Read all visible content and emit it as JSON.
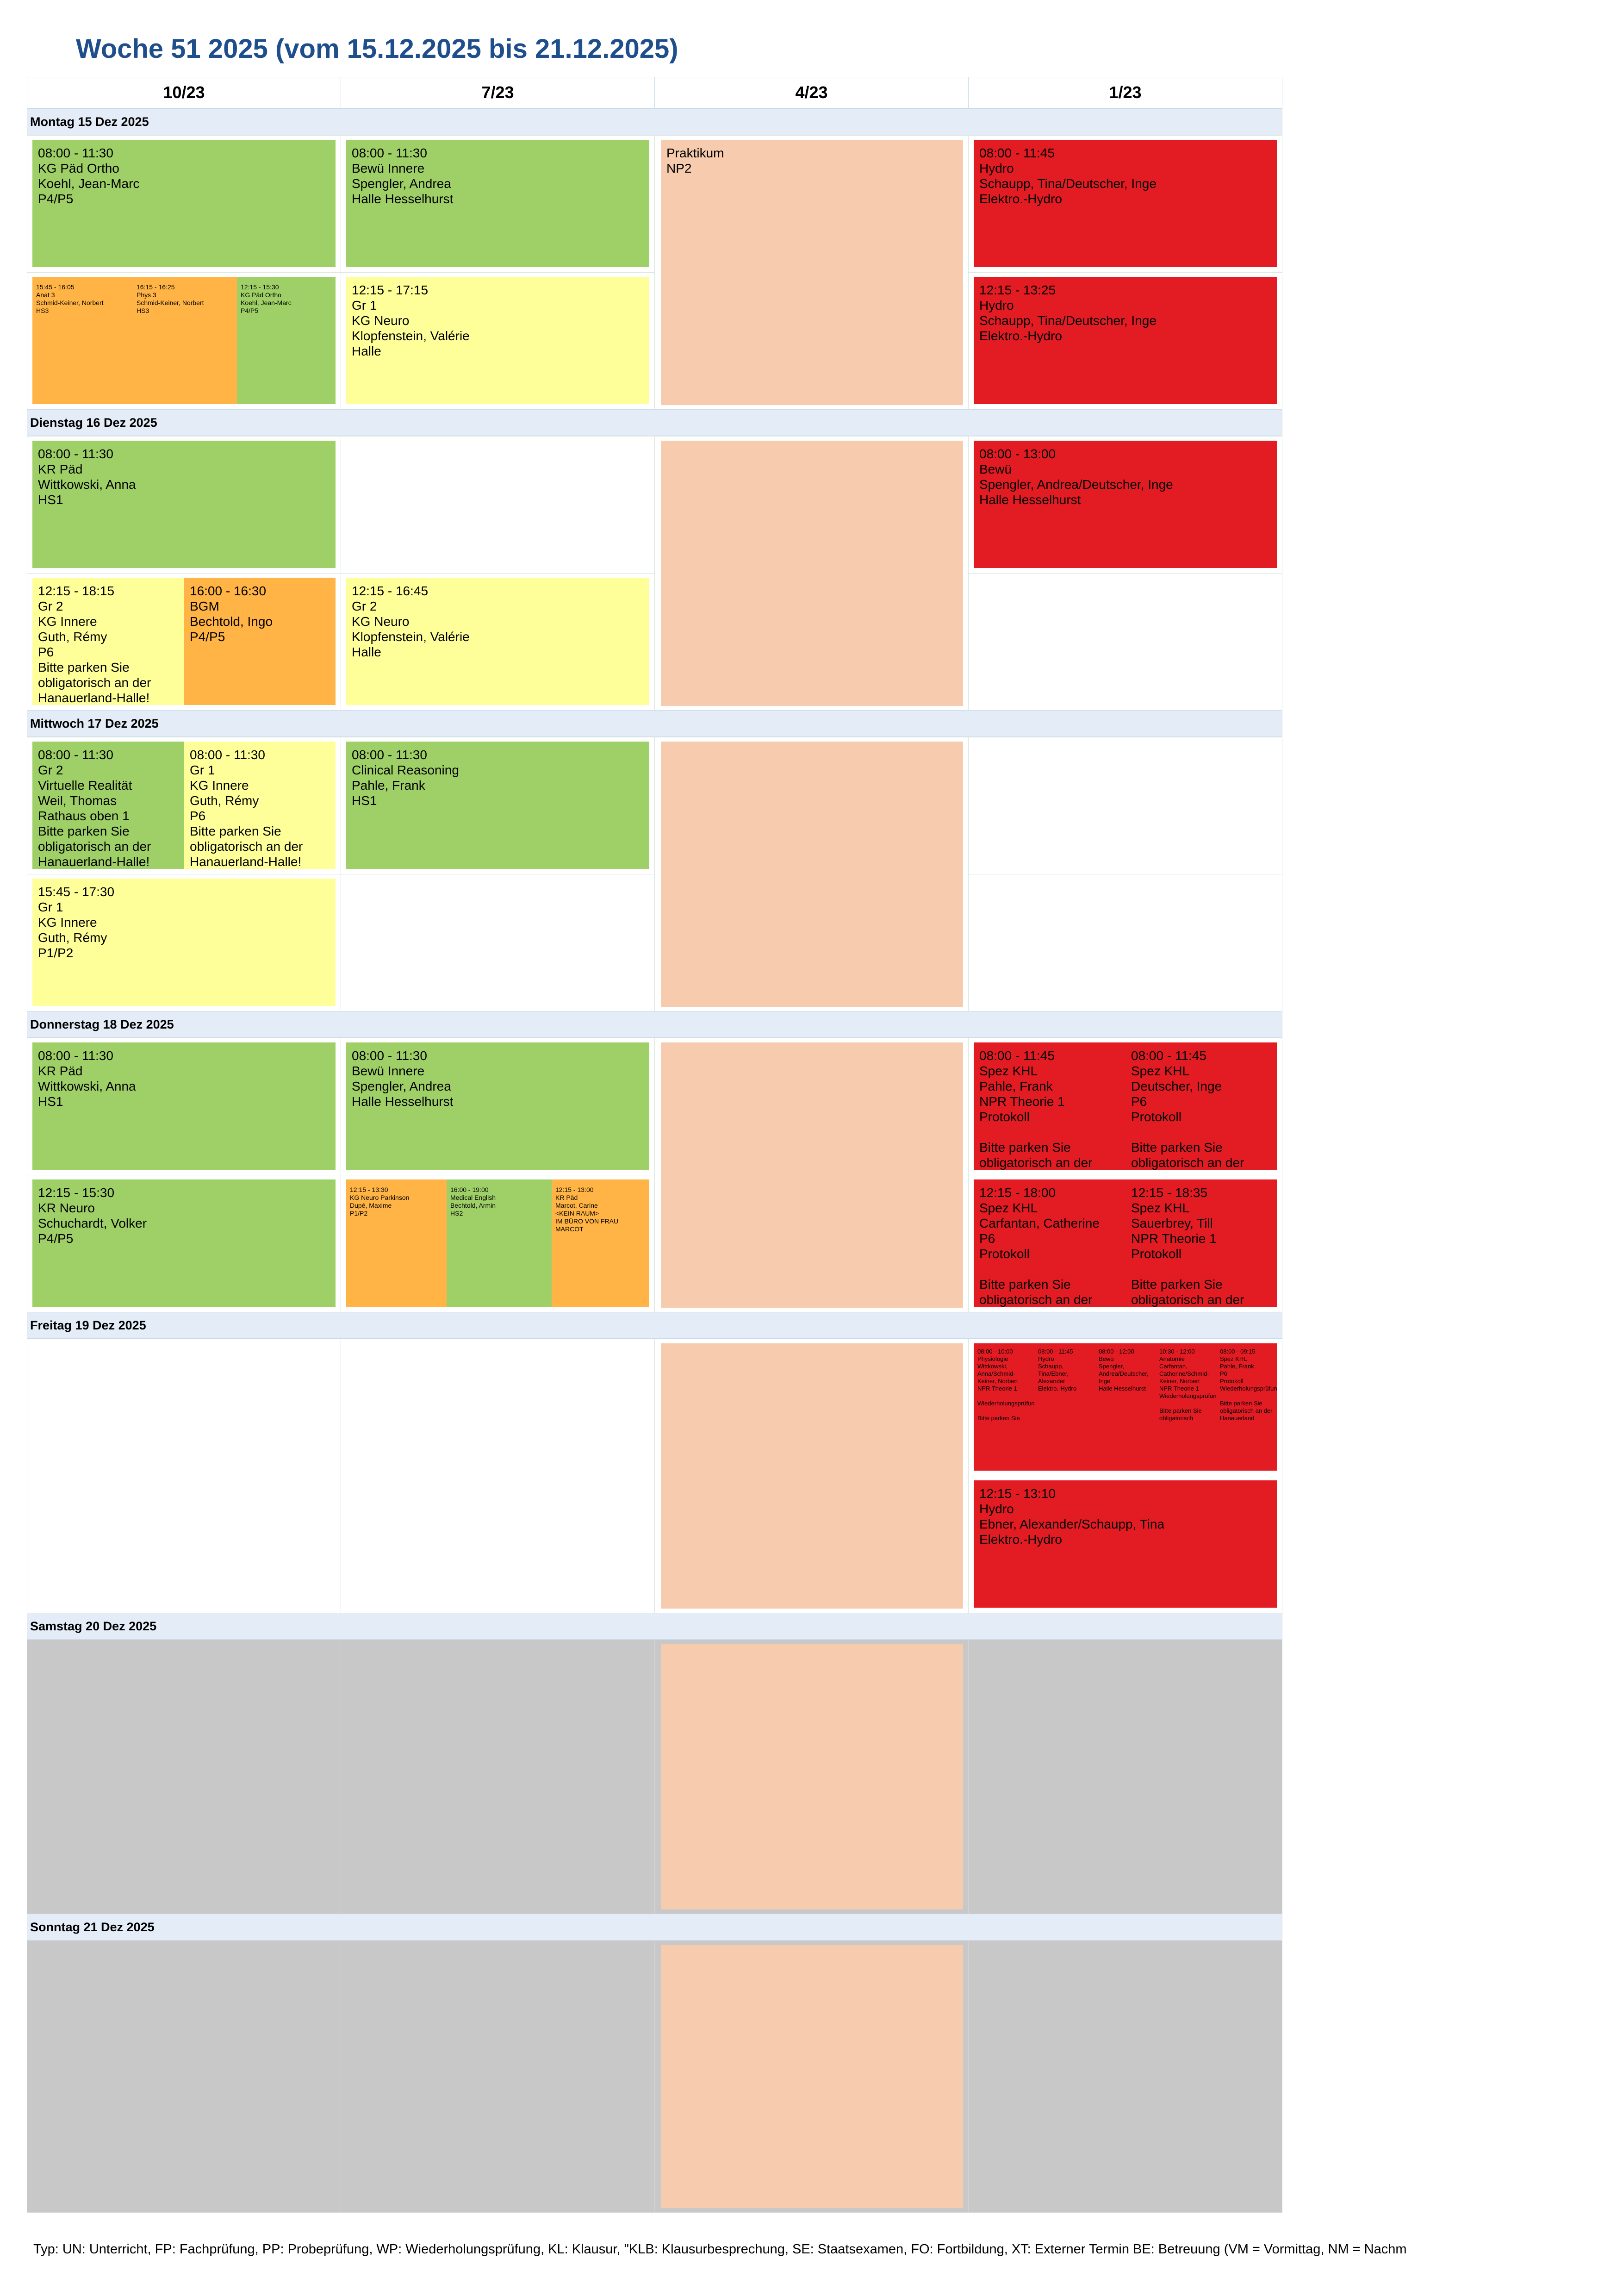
{
  "title": "Woche 51 2025 (vom 15.12.2025 bis 21.12.2025)",
  "columns": [
    "10/23",
    "7/23",
    "4/23",
    "1/23"
  ],
  "days": [
    "Montag 15 Dez 2025",
    "Dienstag 16 Dez 2025",
    "Mittwoch 17 Dez 2025",
    "Donnerstag 18 Dez 2025",
    "Freitag 19 Dez 2025",
    "Samstag 20 Dez 2025",
    "Sonntag 21 Dez 2025"
  ],
  "events": {
    "mo_c0_a": "08:00 - 11:30\nKG Päd Ortho\nKoehl, Jean-Marc\nP4/P5",
    "mo_c0_b1": "15:45 - 16:05\nAnat 3\nSchmid-Keiner, Norbert\nHS3",
    "mo_c0_b2": "16:15 - 16:25\nPhys 3\nSchmid-Keiner, Norbert\nHS3",
    "mo_c0_b3": "12:15 - 15:30\nKG Päd Ortho\nKoehl, Jean-Marc\nP4/P5",
    "mo_c1_a": "08:00 - 11:30\nBewü Innere\nSpengler, Andrea\nHalle Hesselhurst",
    "mo_c1_b": "12:15 - 17:15\nGr 1\nKG Neuro\nKlopfenstein, Valérie\nHalle",
    "c2_praktikum": "Praktikum\nNP2",
    "mo_c3_a": "08:00 - 11:45\nHydro\nSchaupp, Tina/Deutscher, Inge\nElektro.-Hydro",
    "mo_c3_b": "12:15 - 13:25\nHydro\nSchaupp, Tina/Deutscher, Inge\nElektro.-Hydro",
    "di_c0_a": "08:00 - 11:30\nKR Päd\nWittkowski, Anna\nHS1",
    "di_c0_b1": "12:15 - 18:15\nGr 2\nKG Innere\nGuth, Rémy\nP6\nBitte parken Sie obligatorisch an der Hanauerland-Halle!",
    "di_c0_b2": "16:00 - 16:30\nBGM\nBechtold, Ingo\nP4/P5",
    "di_c1_b": "12:15 - 16:45\nGr 2\nKG Neuro\nKlopfenstein, Valérie\nHalle",
    "di_c3_a": "08:00 - 13:00\nBewü\nSpengler, Andrea/Deutscher, Inge\nHalle Hesselhurst",
    "mi_c0_a1": "08:00 - 11:30\nGr 2\nVirtuelle Realität\nWeil, Thomas\nRathaus oben 1\nBitte parken Sie obligatorisch an der Hanauerland-Halle!",
    "mi_c0_a2": "08:00 - 11:30\nGr 1\nKG Innere\nGuth, Rémy\nP6\nBitte parken Sie obligatorisch an der Hanauerland-Halle!",
    "mi_c0_b": "15:45 - 17:30\nGr 1\nKG Innere\nGuth, Rémy\nP1/P2",
    "mi_c1_a": "08:00 - 11:30\nClinical Reasoning\nPahle, Frank\nHS1",
    "do_c0_a": "08:00 - 11:30\nKR Päd\nWittkowski, Anna\nHS1",
    "do_c0_b": "12:15 - 15:30\nKR Neuro\nSchuchardt, Volker\nP4/P5",
    "do_c1_a": "08:00 - 11:30\nBewü Innere\nSpengler, Andrea\nHalle Hesselhurst",
    "do_c1_b1": "12:15 - 13:30\nKG Neuro Parkinson\nDupé, Maxime\nP1/P2",
    "do_c1_b2": "16:00 - 19:00\nMedical English\nBechtold, Armin\nHS2",
    "do_c1_b3": "12:15 - 13:00\nKR Päd\nMarcot, Carine\n<KEIN RAUM>\nIM BÜRO VON FRAU MARCOT",
    "do_c3_a1": "08:00 - 11:45\nSpez KHL\nPahle, Frank\nNPR Theorie 1\nProtokoll\n\nBitte parken Sie obligatorisch an der",
    "do_c3_a2": "08:00 - 11:45\nSpez KHL\nDeutscher, Inge\nP6\nProtokoll\n\nBitte parken Sie obligatorisch an der",
    "do_c3_b1": "12:15 - 18:00\nSpez KHL\nCarfantan, Catherine\nP6\nProtokoll\n\nBitte parken Sie obligatorisch an der",
    "do_c3_b2": "12:15 - 18:35\nSpez KHL\nSauerbrey, Till\nNPR Theorie 1\nProtokoll\n\nBitte parken Sie obligatorisch an der",
    "fr_c3_a1": "08:00 - 10:00\nPhysiologie\nWittkowski, Anna/Schmid-Keiner, Norbert\nNPR Theorie 1\n\nWiederholungsprüfung\n\nBitte parken Sie",
    "fr_c3_a2": "08:00 - 11:45\nHydro\nSchaupp, Tina/Ebner, Alexander\nElektro.-Hydro",
    "fr_c3_a3": "08:00 - 12:00\nBewü\nSpengler, Andrea/Deutscher, Inge\nHalle Hesselhurst",
    "fr_c3_a4": "10:30 - 12:00\nAnatomie\nCarfantan, Catherine/Schmid-Keiner, Norbert\nNPR Theorie 1\nWiederholungsprüfung\n\nBitte parken Sie obligatorisch",
    "fr_c3_a5": "08:00 - 09:15\nSpez KHL\nPahle, Frank\nP6\nProtokoll\nWiederholungsprüfung\n\nBitte parken Sie obligatorisch an der Hanauerland",
    "fr_c3_b": "12:15 - 13:10\nHydro\nEbner, Alexander/Schaupp, Tina\nElektro.-Hydro"
  },
  "footer": "Typ: UN: Unterricht, FP: Fachprüfung, PP: Probeprüfung, WP: Wiederholungsprüfung, KL: Klausur, \"KLB: Klausurbesprechung, SE: Staatsexamen, FO: Fortbildung, XT: Externer Termin BE: Betreuung (VM = Vormittag, NM = Nachm"
}
